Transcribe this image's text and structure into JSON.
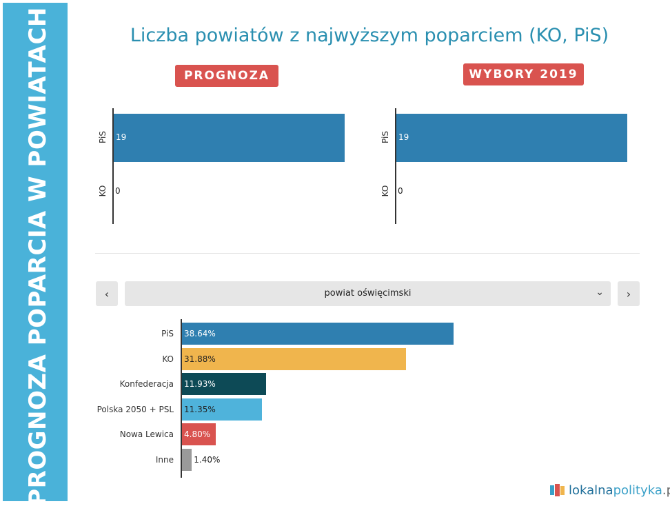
{
  "sidebar": {
    "title": "PROGNOZA POPARCIA W POWIATACH"
  },
  "header": {
    "title": "Liczba powiatów z najwyższym poparciem (KO, PiS)"
  },
  "panels": [
    {
      "badge": "PROGNOZA",
      "bars": [
        {
          "label": "PiS",
          "value": 19,
          "value_text": "19"
        },
        {
          "label": "KO",
          "value": 0,
          "value_text": "0"
        }
      ]
    },
    {
      "badge": "WYBORY 2019",
      "bars": [
        {
          "label": "PiS",
          "value": 19,
          "value_text": "19"
        },
        {
          "label": "KO",
          "value": 0,
          "value_text": "0"
        }
      ]
    }
  ],
  "selector": {
    "prev_icon": "chevron-left-icon",
    "next_icon": "chevron-right-icon",
    "dropdown_icon": "chevron-down-icon",
    "selected": "powiat oświęcimski"
  },
  "chart_data": {
    "type": "bar",
    "orientation": "horizontal",
    "categories": [
      "PiS",
      "KO",
      "Konfederacja",
      "Polska 2050 + PSL",
      "Nowa Lewica",
      "Inne"
    ],
    "values": [
      38.64,
      31.88,
      11.93,
      11.35,
      4.8,
      1.4
    ],
    "value_labels": [
      "38.64%",
      "31.88%",
      "11.93%",
      "11.35%",
      "4.80%",
      "1.40%"
    ],
    "colors": [
      "#2f7fb0",
      "#f0b54d",
      "#0d4a56",
      "#4fb3db",
      "#d9534f",
      "#9a9a9a"
    ],
    "label_colors": [
      "#ffffff",
      "#222222",
      "#ffffff",
      "#222222",
      "#ffffff",
      "#222222"
    ]
  },
  "logo": {
    "part1": "lokalna",
    "part2": "polityka",
    "part3": ".pl"
  }
}
